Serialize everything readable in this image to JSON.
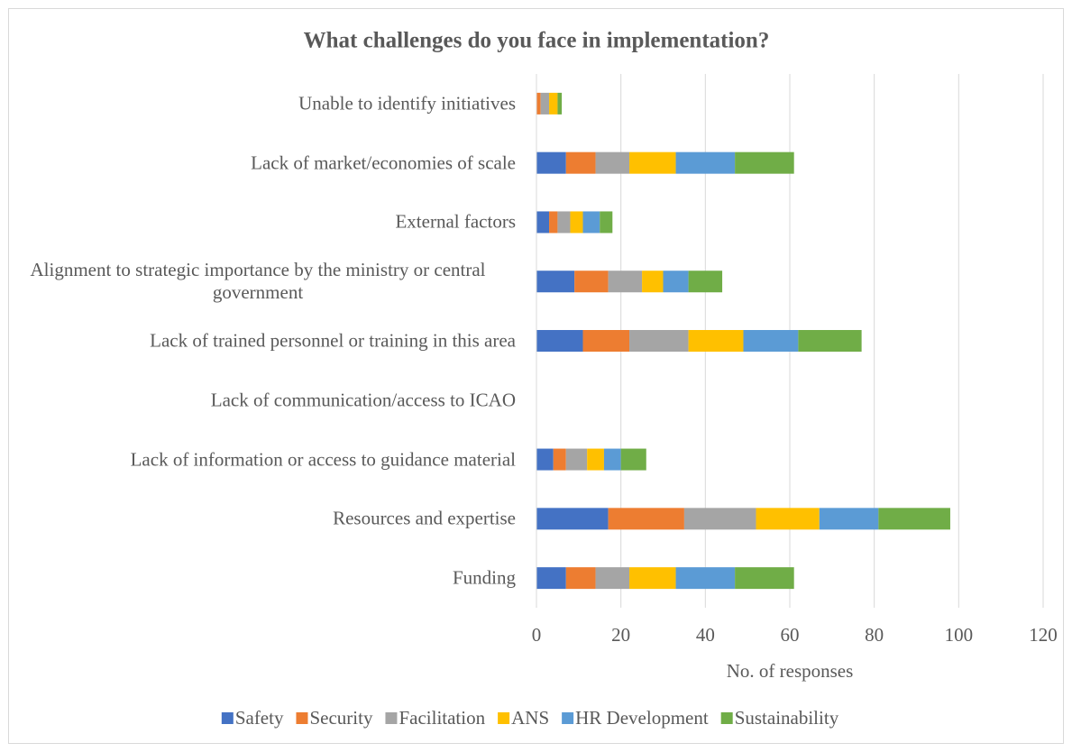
{
  "chart_data": {
    "type": "stacked_barh",
    "title": "What challenges do you face in implementation?",
    "xlabel": "No. of responses",
    "categories": [
      "Unable to identify initiatives",
      "Lack of market/economies of scale",
      "External factors",
      "Alignment to strategic importance by the ministry or central government",
      "Lack of trained personnel or training in this area",
      "Lack of communication/access to ICAO",
      "Lack of information or access to guidance material",
      "Resources and expertise",
      "Funding"
    ],
    "series": [
      {
        "name": "Safety",
        "color": "#4472c4",
        "values": [
          0,
          7,
          3,
          9,
          11,
          0,
          4,
          17,
          7
        ]
      },
      {
        "name": "Security",
        "color": "#ed7d31",
        "values": [
          1,
          7,
          2,
          8,
          11,
          0,
          3,
          18,
          7
        ]
      },
      {
        "name": "Facilitation",
        "color": "#a5a5a5",
        "values": [
          2,
          8,
          3,
          8,
          14,
          0,
          5,
          17,
          8
        ]
      },
      {
        "name": "ANS",
        "color": "#ffc000",
        "values": [
          2,
          11,
          3,
          5,
          13,
          0,
          4,
          15,
          11
        ]
      },
      {
        "name": "HR Development",
        "color": "#5b9bd5",
        "values": [
          0,
          14,
          4,
          6,
          13,
          0,
          4,
          14,
          14
        ]
      },
      {
        "name": "Sustainability",
        "color": "#70ad47",
        "values": [
          1,
          14,
          3,
          8,
          15,
          0,
          6,
          17,
          14
        ]
      }
    ],
    "xlim": [
      0,
      120
    ],
    "xticks": [
      0,
      20,
      40,
      60,
      80,
      100,
      120
    ],
    "grid": true,
    "legend": "bottom"
  }
}
